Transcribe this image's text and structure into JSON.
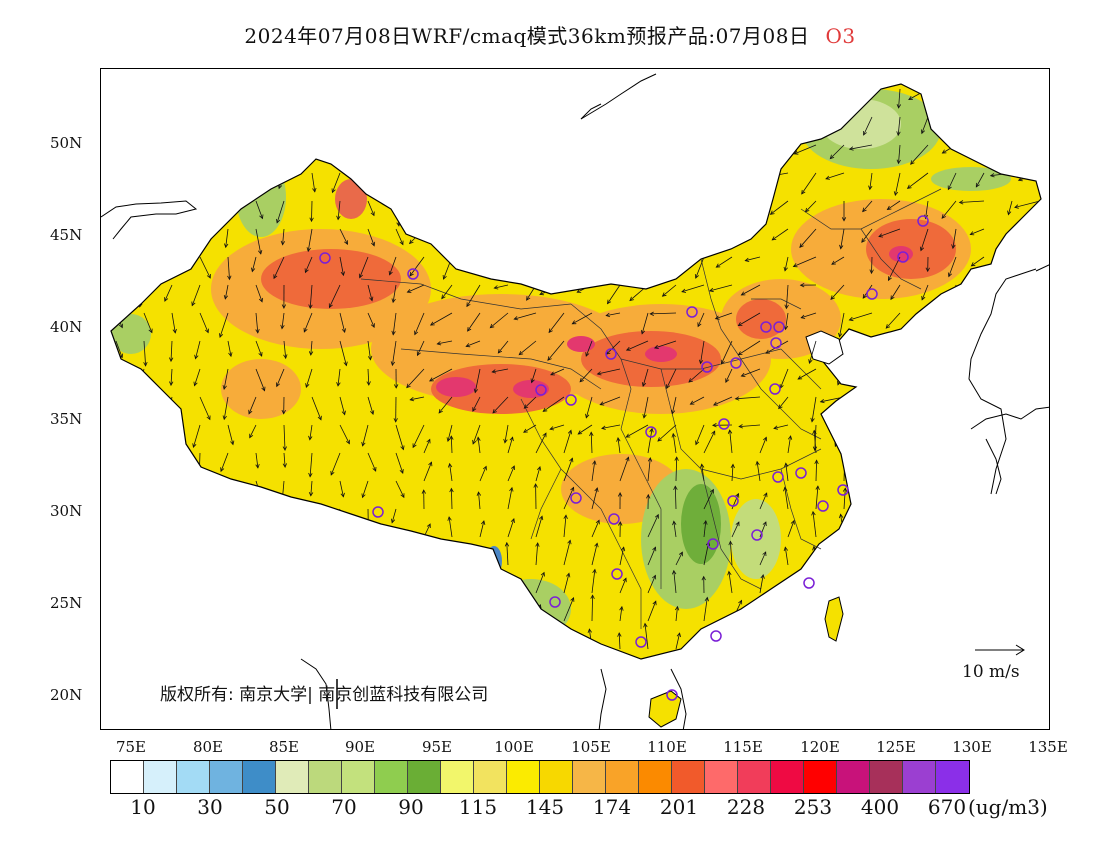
{
  "title": {
    "main": "2024年07月08日WRF/cmaq模式36km预报产品:07月08日",
    "species": "O3"
  },
  "map": {
    "lat_labels": [
      "50N",
      "45N",
      "40N",
      "35N",
      "30N",
      "25N",
      "20N"
    ],
    "lon_labels": [
      "75E",
      "80E",
      "85E",
      "90E",
      "95E",
      "100E",
      "105E",
      "110E",
      "115E",
      "120E",
      "125E",
      "130E",
      "135E"
    ],
    "copyright": "版权所有: 南京大学| 南京创蓝科技有限公司",
    "wind_reference": "10 m/s"
  },
  "colorbar": {
    "colors": [
      "#ffffff",
      "#d6f0fb",
      "#a3dbf5",
      "#6fb3e0",
      "#3e8dc8",
      "#e0ebb8",
      "#bcd97c",
      "#c3e17d",
      "#8fcd4f",
      "#6aae35",
      "#f2f66b",
      "#f2e35f",
      "#fbeb00",
      "#f7d800",
      "#f6b647",
      "#f9a328",
      "#fb8a00",
      "#f15a2b",
      "#fe6a6a",
      "#f13d5a",
      "#ef0a43",
      "#ff0000",
      "#c8127a",
      "#a7305a",
      "#9b3fd1",
      "#8b2fe8"
    ],
    "labels": [
      "10",
      "30",
      "50",
      "70",
      "90",
      "115",
      "145",
      "174",
      "201",
      "228",
      "253",
      "400",
      "670"
    ],
    "unit": "(ug/m3)"
  },
  "colors": {
    "base_yellow": "#f5e100",
    "orange": "#f7ac3a",
    "red_orange": "#ef6a3a",
    "magenta": "#e3386e",
    "green": "#a9cf63",
    "light_green": "#cfe29b",
    "blue": "#4b86c5",
    "station_marker": "#7a1fd6"
  }
}
